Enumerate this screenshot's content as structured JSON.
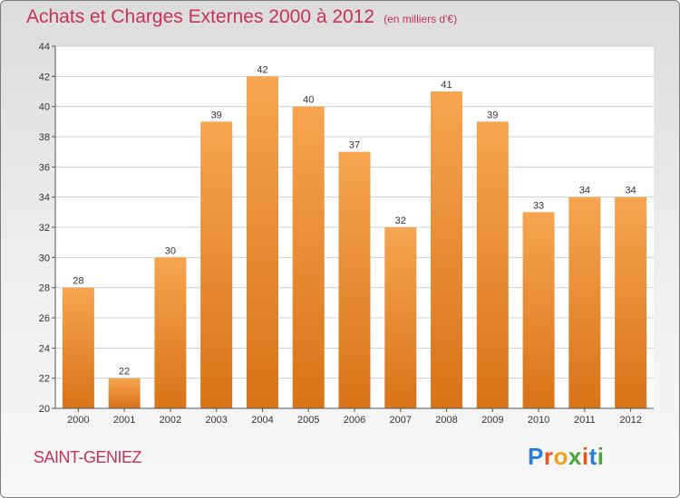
{
  "title": "Achats et Charges Externes 2000 à 2012",
  "unit": "(en milliers d'€)",
  "commune": "SAINT-GENIEZ",
  "logo": {
    "letters": [
      "P",
      "r",
      "o",
      "x",
      "i",
      "t",
      "i"
    ],
    "colors": [
      "#2a7fd4",
      "#e8541c",
      "#f2a01a",
      "#46a83a",
      "#e8541c",
      "#2a7fd4",
      "#46a83a"
    ]
  },
  "colors": {
    "bar_top": "#f6a551",
    "bar_bottom": "#d87318",
    "title": "#c8325a"
  },
  "chart_data": {
    "type": "bar",
    "categories": [
      "2000",
      "2001",
      "2002",
      "2003",
      "2004",
      "2005",
      "2006",
      "2007",
      "2008",
      "2009",
      "2010",
      "2011",
      "2012"
    ],
    "values": [
      28,
      22,
      30,
      39,
      42,
      40,
      37,
      32,
      41,
      39,
      33,
      34,
      34
    ],
    "ylim": [
      20,
      44
    ],
    "yticks": [
      20,
      22,
      24,
      26,
      28,
      30,
      32,
      34,
      36,
      38,
      40,
      42,
      44
    ],
    "grid": true,
    "title": "Achats et Charges Externes 2000 à 2012",
    "xlabel": "",
    "ylabel": ""
  }
}
